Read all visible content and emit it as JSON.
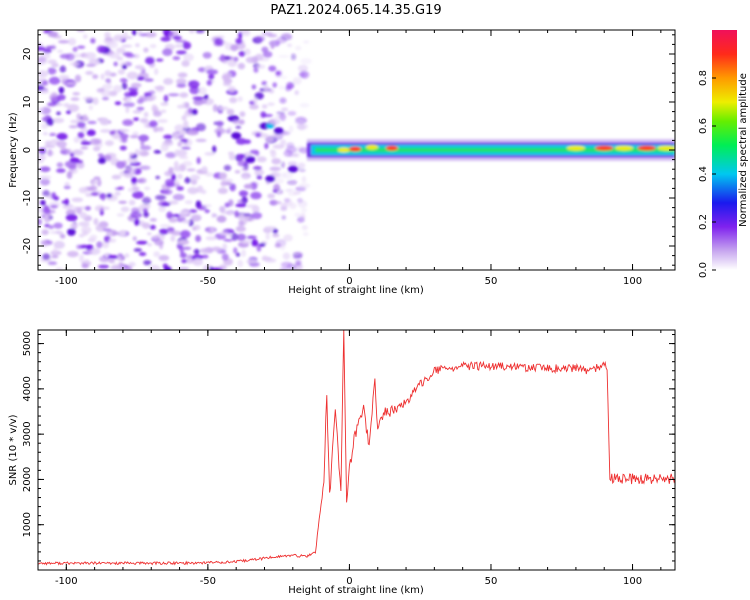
{
  "figure": {
    "title": "PAZ1.2024.065.14.35.G19"
  },
  "chart_data": [
    {
      "type": "heatmap",
      "xlabel": "Height of straight line (km)",
      "ylabel": "Frequency (Hz)",
      "xlim": [
        -110,
        115
      ],
      "ylim": [
        -25,
        25
      ],
      "xticks": [
        "-100",
        "-50",
        "0",
        "50",
        "100"
      ],
      "yticks": [
        "-20",
        "-10",
        "0",
        "10",
        "20"
      ],
      "colorbar": {
        "label": "Normalized spectral amplitude",
        "range": [
          0,
          1
        ],
        "ticks": [
          "0.0",
          "0.2",
          "0.4",
          "0.6",
          "0.8"
        ],
        "colormap": "rainbow"
      },
      "regions": [
        {
          "description": "scattered noise",
          "x": [
            -110,
            -15
          ],
          "y": [
            -25,
            25
          ],
          "amplitude": [
            0.05,
            0.35
          ]
        },
        {
          "description": "signal band",
          "x": [
            -15,
            115
          ],
          "y": [
            -1.5,
            1.5
          ],
          "amplitude": [
            0.3,
            0.9
          ]
        }
      ]
    },
    {
      "type": "line",
      "xlabel": "Height of straight line (km)",
      "ylabel": "SNR (10 * v/v)",
      "xlim": [
        -110,
        115
      ],
      "ylim": [
        0,
        5300
      ],
      "xticks": [
        "-100",
        "-50",
        "0",
        "50",
        "100"
      ],
      "yticks": [
        "1000",
        "2000",
        "3000",
        "4000",
        "5000"
      ],
      "color": "#ee3030",
      "series": [
        {
          "x": [
            -110,
            -60,
            -40,
            -25,
            -20,
            -15,
            -12,
            -9,
            -8,
            -7,
            -5,
            -3,
            -2,
            -1,
            0,
            2,
            5,
            7,
            9,
            10,
            12,
            15,
            20,
            25,
            30,
            40,
            50,
            60,
            70,
            80,
            85,
            89,
            91,
            92,
            95,
            100,
            105,
            110,
            115
          ],
          "y": [
            150,
            150,
            180,
            300,
            320,
            300,
            400,
            2000,
            3900,
            1600,
            3500,
            1800,
            5300,
            1500,
            2200,
            3000,
            3600,
            2700,
            4300,
            3000,
            3500,
            3500,
            3700,
            4100,
            4400,
            4500,
            4500,
            4480,
            4450,
            4450,
            4400,
            4500,
            4500,
            2050,
            2000,
            2000,
            2000,
            2000,
            2000
          ]
        }
      ]
    }
  ]
}
